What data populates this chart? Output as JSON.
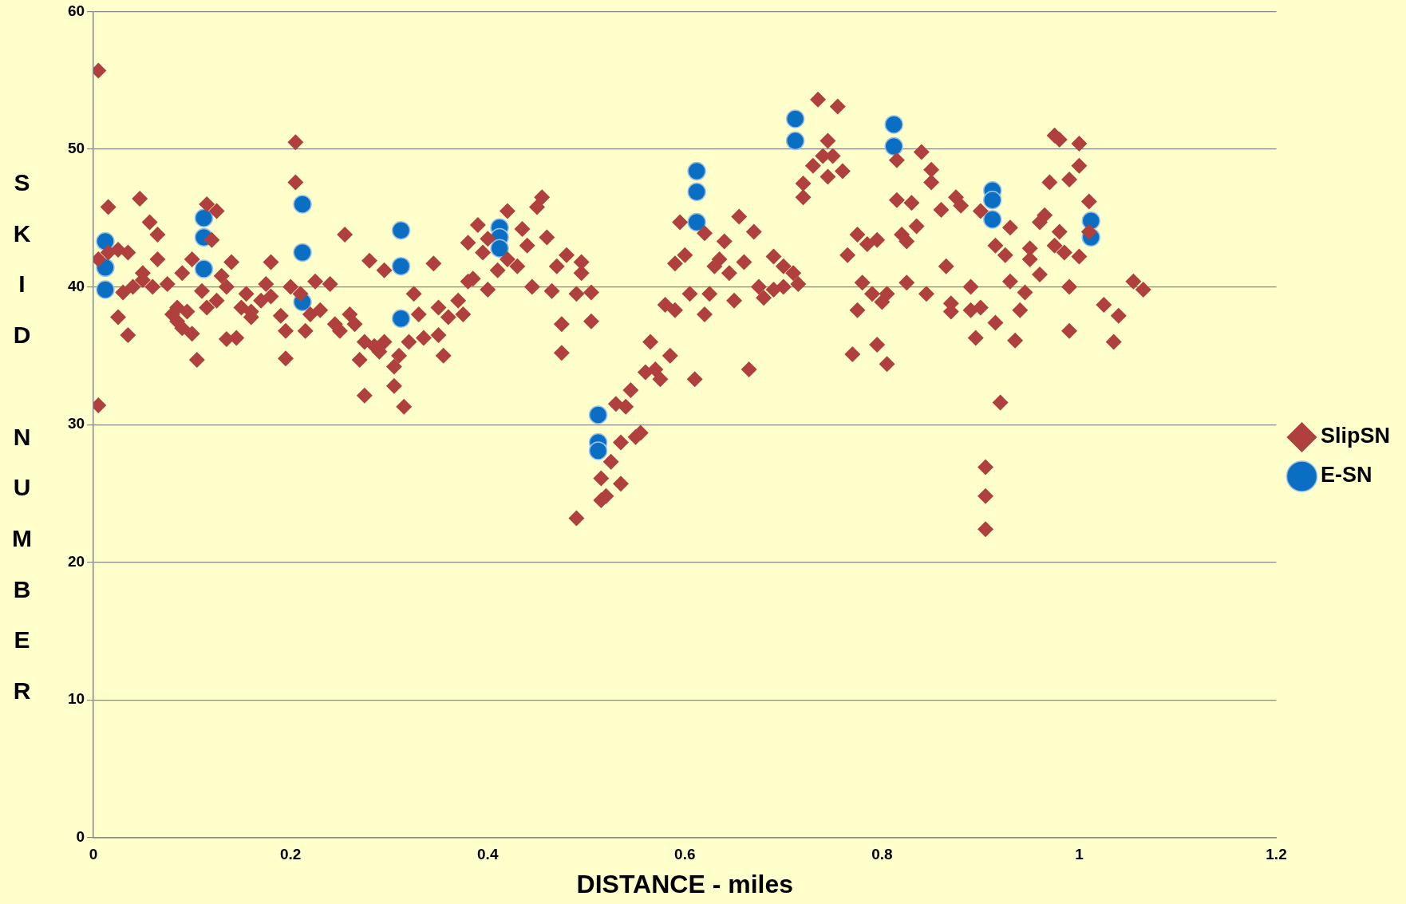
{
  "chart_data": {
    "type": "scatter",
    "xlabel": "DISTANCE - miles",
    "ylabel": "SKID NUMBER",
    "xlim": [
      0,
      1.2
    ],
    "xticks": [
      0,
      0.2,
      0.4,
      0.6,
      0.8,
      1,
      1.2
    ],
    "ylim": [
      0,
      60
    ],
    "yticks": [
      0,
      10,
      20,
      30,
      40,
      50,
      60
    ],
    "grid": "y",
    "legend": "right",
    "series": [
      {
        "name": "SlipSN",
        "color": "#b0403d",
        "marker": "diamond",
        "x": [
          0.005,
          0.005,
          0.005,
          0.015,
          0.015,
          0.025,
          0.025,
          0.03,
          0.035,
          0.035,
          0.04,
          0.047,
          0.05,
          0.05,
          0.057,
          0.06,
          0.065,
          0.065,
          0.075,
          0.08,
          0.085,
          0.085,
          0.09,
          0.09,
          0.095,
          0.1,
          0.1,
          0.105,
          0.11,
          0.115,
          0.115,
          0.12,
          0.125,
          0.125,
          0.13,
          0.135,
          0.135,
          0.14,
          0.145,
          0.15,
          0.155,
          0.16,
          0.16,
          0.17,
          0.175,
          0.18,
          0.18,
          0.19,
          0.195,
          0.195,
          0.2,
          0.205,
          0.205,
          0.21,
          0.215,
          0.22,
          0.225,
          0.23,
          0.24,
          0.245,
          0.25,
          0.255,
          0.26,
          0.265,
          0.27,
          0.275,
          0.275,
          0.28,
          0.285,
          0.29,
          0.295,
          0.295,
          0.305,
          0.305,
          0.31,
          0.315,
          0.32,
          0.325,
          0.33,
          0.335,
          0.345,
          0.35,
          0.35,
          0.355,
          0.36,
          0.37,
          0.375,
          0.38,
          0.38,
          0.385,
          0.39,
          0.395,
          0.4,
          0.4,
          0.41,
          0.42,
          0.42,
          0.43,
          0.435,
          0.44,
          0.445,
          0.45,
          0.455,
          0.46,
          0.465,
          0.47,
          0.475,
          0.475,
          0.48,
          0.49,
          0.49,
          0.495,
          0.495,
          0.505,
          0.505,
          0.515,
          0.515,
          0.52,
          0.525,
          0.53,
          0.535,
          0.535,
          0.54,
          0.545,
          0.55,
          0.555,
          0.56,
          0.565,
          0.57,
          0.575,
          0.58,
          0.585,
          0.59,
          0.59,
          0.595,
          0.6,
          0.605,
          0.61,
          0.62,
          0.62,
          0.625,
          0.63,
          0.635,
          0.64,
          0.645,
          0.65,
          0.655,
          0.66,
          0.665,
          0.67,
          0.675,
          0.68,
          0.69,
          0.69,
          0.7,
          0.7,
          0.71,
          0.715,
          0.72,
          0.72,
          0.73,
          0.735,
          0.74,
          0.745,
          0.745,
          0.75,
          0.755,
          0.76,
          0.765,
          0.77,
          0.775,
          0.775,
          0.78,
          0.785,
          0.79,
          0.795,
          0.795,
          0.8,
          0.805,
          0.805,
          0.815,
          0.815,
          0.82,
          0.825,
          0.825,
          0.83,
          0.835,
          0.84,
          0.845,
          0.85,
          0.85,
          0.86,
          0.865,
          0.87,
          0.87,
          0.875,
          0.88,
          0.89,
          0.89,
          0.895,
          0.9,
          0.9,
          0.905,
          0.905,
          0.905,
          0.915,
          0.915,
          0.92,
          0.925,
          0.93,
          0.93,
          0.935,
          0.94,
          0.945,
          0.95,
          0.95,
          0.96,
          0.96,
          0.965,
          0.97,
          0.975,
          0.975,
          0.98,
          0.98,
          0.985,
          0.99,
          0.99,
          0.99,
          1.0,
          1.0,
          1.0,
          1.01,
          1.01,
          1.025,
          1.035,
          1.04,
          1.055,
          1.065
        ],
        "values": [
          55.7,
          31.4,
          42,
          45.8,
          42.5,
          37.8,
          42.7,
          39.6,
          36.5,
          42.5,
          40,
          46.4,
          41,
          40.5,
          44.7,
          40,
          42,
          43.8,
          40.2,
          38,
          37.5,
          38.5,
          41,
          37,
          38.2,
          42,
          36.6,
          34.7,
          39.7,
          38.5,
          46,
          43.4,
          45.5,
          39,
          40.8,
          36.2,
          40,
          41.8,
          36.3,
          38.5,
          39.5,
          37.8,
          38.2,
          39,
          40.2,
          41.8,
          39.3,
          37.9,
          34.8,
          36.8,
          40,
          50.5,
          47.6,
          39.5,
          36.8,
          38,
          40.4,
          38.3,
          40.2,
          37.3,
          36.8,
          43.8,
          38,
          37.3,
          34.7,
          36,
          32.1,
          41.9,
          35.7,
          35.3,
          41.2,
          36,
          34.2,
          32.8,
          35,
          31.3,
          36,
          39.5,
          38,
          36.3,
          41.7,
          38.5,
          36.5,
          35,
          37.8,
          39,
          38,
          43.2,
          40.4,
          40.6,
          44.5,
          42.5,
          39.8,
          43.5,
          41.2,
          45.5,
          42,
          41.5,
          44.2,
          43,
          40,
          45.8,
          46.5,
          43.6,
          39.7,
          41.5,
          37.3,
          35.2,
          42.3,
          39.5,
          23.2,
          41,
          41.8,
          39.6,
          37.5,
          26.1,
          24.5,
          24.8,
          27.3,
          31.5,
          28.7,
          25.7,
          31.3,
          32.5,
          29.1,
          29.4,
          33.8,
          36,
          34,
          33.3,
          38.7,
          35,
          41.7,
          38.3,
          44.7,
          42.3,
          39.5,
          33.3,
          43.9,
          38,
          39.5,
          41.5,
          42,
          43.3,
          41,
          39,
          45.1,
          41.8,
          34,
          44,
          40,
          39.2,
          42.2,
          39.8,
          41.5,
          40,
          41,
          40.2,
          47.5,
          46.5,
          48.8,
          53.6,
          49.5,
          50.6,
          48,
          49.5,
          53.1,
          48.4,
          42.3,
          35.1,
          43.8,
          38.3,
          40.3,
          43.1,
          39.5,
          35.8,
          43.4,
          38.9,
          34.4,
          39.5,
          49.2,
          46.3,
          43.8,
          40.3,
          43.3,
          46.1,
          44.4,
          49.8,
          39.5,
          48.5,
          47.6,
          45.6,
          41.5,
          38.8,
          38.2,
          46.5,
          45.9,
          40,
          38.3,
          36.3,
          45.5,
          38.5,
          26.9,
          24.8,
          22.4,
          43,
          37.4,
          31.6,
          42.3,
          44.3,
          40.4,
          36.1,
          38.3,
          39.6,
          42.8,
          42,
          44.7,
          40.9,
          45.2,
          47.6,
          51,
          43,
          50.7,
          44,
          42.5,
          47.8,
          40,
          36.8,
          48.8,
          50.4,
          42.2,
          46.2,
          44,
          38.7,
          36,
          37.9,
          40.4,
          39.8
        ]
      },
      {
        "name": "E-SN",
        "color": "#0a6fc2",
        "marker": "circle",
        "x": [
          0.012,
          0.012,
          0.012,
          0.112,
          0.112,
          0.112,
          0.212,
          0.212,
          0.212,
          0.312,
          0.312,
          0.312,
          0.412,
          0.412,
          0.412,
          0.512,
          0.512,
          0.512,
          0.612,
          0.612,
          0.612,
          0.712,
          0.712,
          0.812,
          0.812,
          0.912,
          0.912,
          0.912,
          1.012,
          1.012
        ],
        "values": [
          43.3,
          41.4,
          39.8,
          45,
          43.6,
          41.3,
          46,
          42.5,
          38.9,
          44.1,
          41.5,
          37.7,
          44.3,
          43.6,
          42.8,
          30.7,
          28.7,
          28.1,
          48.4,
          46.9,
          44.7,
          52.2,
          50.6,
          51.8,
          50.2,
          47,
          46.3,
          44.9,
          44.8,
          43.6
        ]
      }
    ]
  }
}
